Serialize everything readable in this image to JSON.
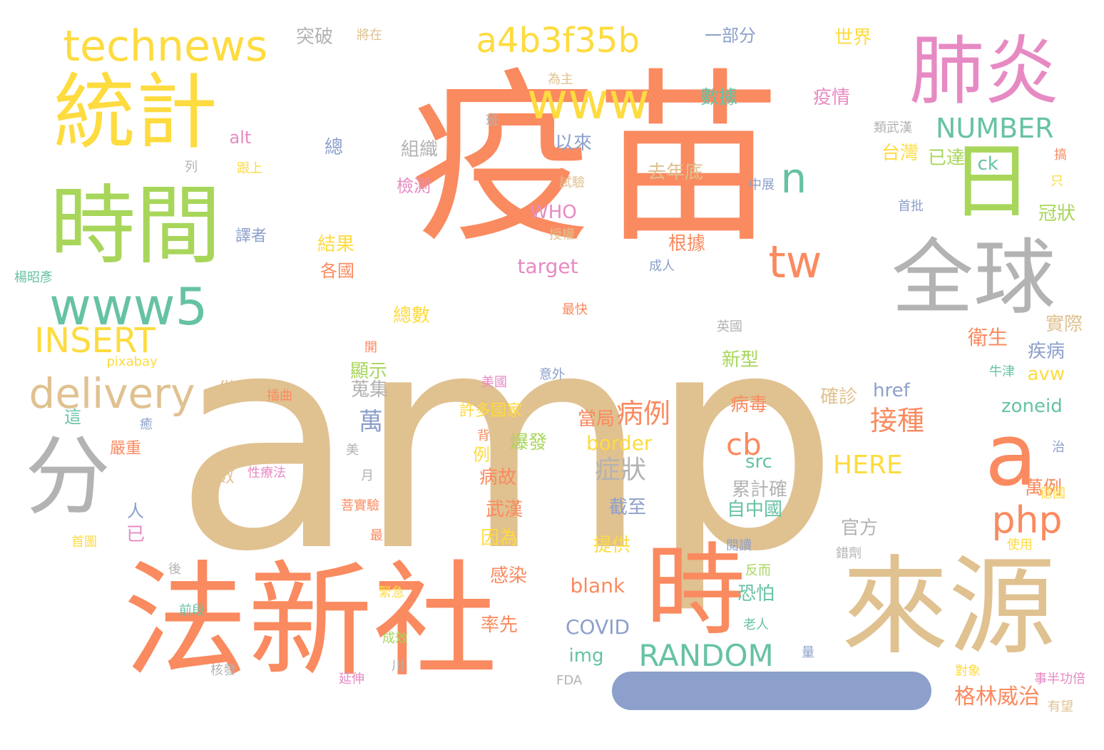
{
  "palette": {
    "orange": "#fa8a5f",
    "tan": "#e0c190",
    "gold": "#fedb3f",
    "green": "#a8d65b",
    "teal": "#66c2a5",
    "pink": "#e78ac3",
    "blue": "#8da0cb",
    "grey": "#b3b3b3"
  },
  "words": [
    {
      "text": "amp",
      "color": "tan",
      "size": 420,
      "vertical": false
    },
    {
      "text": "疫苗",
      "color": "orange",
      "size": 260,
      "vertical": false
    },
    {
      "text": "法新社",
      "color": "orange",
      "size": 175,
      "vertical": false
    },
    {
      "text": "來源",
      "color": "tan",
      "size": 150,
      "vertical": false
    },
    {
      "text": "時間",
      "color": "green",
      "size": 120,
      "vertical": false
    },
    {
      "text": "統計",
      "color": "gold",
      "size": 115,
      "vertical": false
    },
    {
      "text": "全球",
      "color": "grey",
      "size": 115,
      "vertical": false
    },
    {
      "text": "肺炎",
      "color": "pink",
      "size": 105,
      "vertical": false
    },
    {
      "text": "時",
      "color": "orange",
      "size": 140,
      "vertical": false
    },
    {
      "text": "分",
      "color": "grey",
      "size": 120,
      "vertical": false
    },
    {
      "text": "日",
      "color": "green",
      "size": 115,
      "vertical": false
    },
    {
      "text": "a",
      "color": "orange",
      "size": 120,
      "vertical": false
    },
    {
      "text": "technews",
      "color": "gold",
      "size": 60,
      "vertical": false
    },
    {
      "text": "www5",
      "color": "teal",
      "size": 72,
      "vertical": false
    },
    {
      "text": "www",
      "color": "gold",
      "size": 70,
      "vertical": false
    },
    {
      "text": "a4b3f35b",
      "color": "gold",
      "size": 48,
      "vertical": false
    },
    {
      "text": "delivery",
      "color": "tan",
      "size": 58,
      "vertical": false
    },
    {
      "text": "INSERT",
      "color": "gold",
      "size": 48,
      "vertical": false
    },
    {
      "text": "tw",
      "color": "orange",
      "size": 62,
      "vertical": false
    },
    {
      "text": "n",
      "color": "teal",
      "size": 58,
      "vertical": false
    },
    {
      "text": "php",
      "color": "orange",
      "size": 52,
      "vertical": false
    },
    {
      "text": "RANDOM",
      "color": "teal",
      "size": 42,
      "vertical": false
    },
    {
      "text": "NUMBER",
      "color": "teal",
      "size": 38,
      "vertical": false
    },
    {
      "text": "cb",
      "color": "orange",
      "size": 42,
      "vertical": false
    },
    {
      "text": "病例",
      "color": "orange",
      "size": 38,
      "vertical": false
    },
    {
      "text": "接種",
      "color": "orange",
      "size": 38,
      "vertical": false
    },
    {
      "text": "症狀",
      "color": "grey",
      "size": 36,
      "vertical": false
    },
    {
      "text": "HERE",
      "color": "gold",
      "size": 36,
      "vertical": false
    },
    {
      "text": "格林威治",
      "color": "orange",
      "size": 30,
      "vertical": false
    },
    {
      "text": "萬",
      "color": "blue",
      "size": 34,
      "vertical": false
    },
    {
      "text": "COVID",
      "color": "blue",
      "size": 28,
      "vertical": false
    },
    {
      "text": "blank",
      "color": "orange",
      "size": 28,
      "vertical": false
    },
    {
      "text": "border",
      "color": "gold",
      "size": 28,
      "vertical": false
    },
    {
      "text": "target",
      "color": "pink",
      "size": 28,
      "vertical": false
    },
    {
      "text": "WHO",
      "color": "pink",
      "size": 26,
      "vertical": false
    },
    {
      "text": "zoneid",
      "color": "teal",
      "size": 26,
      "vertical": false
    },
    {
      "text": "href",
      "color": "blue",
      "size": 26,
      "vertical": false
    },
    {
      "text": "avw",
      "color": "gold",
      "size": 26,
      "vertical": false
    },
    {
      "text": "ck",
      "color": "teal",
      "size": 26,
      "vertical": false
    },
    {
      "text": "src",
      "color": "teal",
      "size": 26,
      "vertical": false
    },
    {
      "text": "img",
      "color": "teal",
      "size": 26,
      "vertical": false
    },
    {
      "text": "alt",
      "color": "pink",
      "size": 24,
      "vertical": false
    },
    {
      "text": "pixabay",
      "color": "gold",
      "size": 18,
      "vertical": false
    },
    {
      "text": "FDA",
      "color": "grey",
      "size": 18,
      "vertical": false
    },
    {
      "text": "突破",
      "color": "grey",
      "size": 26,
      "vertical": false
    },
    {
      "text": "將在",
      "color": "tan",
      "size": 18,
      "vertical": false
    },
    {
      "text": "一部分",
      "color": "blue",
      "size": 24,
      "vertical": false
    },
    {
      "text": "世界",
      "color": "gold",
      "size": 26,
      "vertical": false
    },
    {
      "text": "為主",
      "color": "tan",
      "size": 18,
      "vertical": false
    },
    {
      "text": "數據",
      "color": "teal",
      "size": 26,
      "vertical": false
    },
    {
      "text": "疫情",
      "color": "pink",
      "size": 26,
      "vertical": false
    },
    {
      "text": "班",
      "color": "grey",
      "size": 18,
      "vertical": false
    },
    {
      "text": "類武漢",
      "color": "grey",
      "size": 18,
      "vertical": false
    },
    {
      "text": "總",
      "color": "blue",
      "size": 26,
      "vertical": false
    },
    {
      "text": "組織",
      "color": "grey",
      "size": 26,
      "vertical": false
    },
    {
      "text": "以來",
      "color": "blue",
      "size": 26,
      "vertical": false
    },
    {
      "text": "台灣",
      "color": "gold",
      "size": 26,
      "vertical": false
    },
    {
      "text": "去年底",
      "color": "tan",
      "size": 26,
      "vertical": false
    },
    {
      "text": "列",
      "color": "grey",
      "size": 18,
      "vertical": false
    },
    {
      "text": "跟上",
      "color": "gold",
      "size": 18,
      "vertical": false
    },
    {
      "text": "檢測",
      "color": "pink",
      "size": 24,
      "vertical": false
    },
    {
      "text": "試驗",
      "color": "tan",
      "size": 18,
      "vertical": false
    },
    {
      "text": "中展",
      "color": "blue",
      "size": 18,
      "vertical": false
    },
    {
      "text": "已達",
      "color": "green",
      "size": 26,
      "vertical": false
    },
    {
      "text": "搞",
      "color": "orange",
      "size": 18,
      "vertical": false
    },
    {
      "text": "只",
      "color": "gold",
      "size": 18,
      "vertical": false
    },
    {
      "text": "首批",
      "color": "blue",
      "size": 18,
      "vertical": false
    },
    {
      "text": "冠狀",
      "color": "green",
      "size": 26,
      "vertical": false
    },
    {
      "text": "譯者",
      "color": "blue",
      "size": 22,
      "vertical": false
    },
    {
      "text": "授權",
      "color": "tan",
      "size": 18,
      "vertical": false
    },
    {
      "text": "根據",
      "color": "orange",
      "size": 26,
      "vertical": false
    },
    {
      "text": "結果",
      "color": "gold",
      "size": 26,
      "vertical": false
    },
    {
      "text": "成人",
      "color": "blue",
      "size": 18,
      "vertical": false
    },
    {
      "text": "各國",
      "color": "orange",
      "size": 24,
      "vertical": false
    },
    {
      "text": "楊昭彥",
      "color": "teal",
      "size": 18,
      "vertical": false
    },
    {
      "text": "最快",
      "color": "orange",
      "size": 18,
      "vertical": false
    },
    {
      "text": "總數",
      "color": "gold",
      "size": 26,
      "vertical": false
    },
    {
      "text": "英國",
      "color": "grey",
      "size": 18,
      "vertical": false
    },
    {
      "text": "衛生",
      "color": "orange",
      "size": 28,
      "vertical": false
    },
    {
      "text": "實際",
      "color": "tan",
      "size": 26,
      "vertical": false
    },
    {
      "text": "開",
      "color": "orange",
      "size": 18,
      "vertical": false
    },
    {
      "text": "疾病",
      "color": "blue",
      "size": 26,
      "vertical": false
    },
    {
      "text": "新型",
      "color": "green",
      "size": 26,
      "vertical": false
    },
    {
      "text": "顯示",
      "color": "green",
      "size": 26,
      "vertical": false
    },
    {
      "text": "牛津",
      "color": "teal",
      "size": 18,
      "vertical": false
    },
    {
      "text": "美國",
      "color": "pink",
      "size": 18,
      "vertical": false
    },
    {
      "text": "做出",
      "color": "tan",
      "size": 26,
      "vertical": false
    },
    {
      "text": "蒐集",
      "color": "grey",
      "size": 26,
      "vertical": false
    },
    {
      "text": "插曲",
      "color": "orange",
      "size": 18,
      "vertical": false
    },
    {
      "text": "這",
      "color": "teal",
      "size": 24,
      "vertical": false
    },
    {
      "text": "許多國家",
      "color": "gold",
      "size": 22,
      "vertical": false
    },
    {
      "text": "病毒",
      "color": "orange",
      "size": 26,
      "vertical": false
    },
    {
      "text": "確診",
      "color": "tan",
      "size": 26,
      "vertical": false
    },
    {
      "text": "癒",
      "color": "blue",
      "size": 18,
      "vertical": false
    },
    {
      "text": "當局",
      "color": "orange",
      "size": 26,
      "vertical": false
    },
    {
      "text": "背",
      "color": "orange",
      "size": 18,
      "vertical": false
    },
    {
      "text": "爆發",
      "color": "green",
      "size": 26,
      "vertical": false
    },
    {
      "text": "治",
      "color": "blue",
      "size": 18,
      "vertical": false
    },
    {
      "text": "嚴重",
      "color": "orange",
      "size": 22,
      "vertical": false
    },
    {
      "text": "美",
      "color": "grey",
      "size": 18,
      "vertical": false
    },
    {
      "text": "例",
      "color": "gold",
      "size": 24,
      "vertical": false
    },
    {
      "text": "性療法",
      "color": "pink",
      "size": 18,
      "vertical": false
    },
    {
      "text": "診數",
      "color": "tan",
      "size": 26,
      "vertical": false
    },
    {
      "text": "月",
      "color": "grey",
      "size": 18,
      "vertical": false
    },
    {
      "text": "病故",
      "color": "orange",
      "size": 26,
      "vertical": false
    },
    {
      "text": "累計確",
      "color": "grey",
      "size": 26,
      "vertical": false
    },
    {
      "text": "萬例",
      "color": "orange",
      "size": 26,
      "vertical": false
    },
    {
      "text": "德國",
      "color": "gold",
      "size": 18,
      "vertical": false
    },
    {
      "text": "菩實驗",
      "color": "orange",
      "size": 18,
      "vertical": false
    },
    {
      "text": "武漢",
      "color": "orange",
      "size": 26,
      "vertical": false
    },
    {
      "text": "截至",
      "color": "blue",
      "size": 26,
      "vertical": false
    },
    {
      "text": "自中國",
      "color": "teal",
      "size": 26,
      "vertical": false
    },
    {
      "text": "人",
      "color": "blue",
      "size": 24,
      "vertical": false
    },
    {
      "text": "首圖",
      "color": "gold",
      "size": 18,
      "vertical": false
    },
    {
      "text": "已",
      "color": "pink",
      "size": 26,
      "vertical": false
    },
    {
      "text": "最",
      "color": "orange",
      "size": 18,
      "vertical": false
    },
    {
      "text": "因為",
      "color": "gold",
      "size": 26,
      "vertical": false
    },
    {
      "text": "提供",
      "color": "gold",
      "size": 26,
      "vertical": false
    },
    {
      "text": "官方",
      "color": "grey",
      "size": 26,
      "vertical": false
    },
    {
      "text": "閱讀",
      "color": "blue",
      "size": 18,
      "vertical": false
    },
    {
      "text": "使用",
      "color": "gold",
      "size": 18,
      "vertical": false
    },
    {
      "text": "錯劑",
      "color": "grey",
      "size": 18,
      "vertical": false
    },
    {
      "text": "後",
      "color": "grey",
      "size": 18,
      "vertical": false
    },
    {
      "text": "感染",
      "color": "orange",
      "size": 26,
      "vertical": false
    },
    {
      "text": "反而",
      "color": "green",
      "size": 18,
      "vertical": false
    },
    {
      "text": "緊急",
      "color": "gold",
      "size": 18,
      "vertical": false
    },
    {
      "text": "恐怕",
      "color": "teal",
      "size": 26,
      "vertical": false
    },
    {
      "text": "前段",
      "color": "teal",
      "size": 18,
      "vertical": false
    },
    {
      "text": "率先",
      "color": "orange",
      "size": 26,
      "vertical": false
    },
    {
      "text": "老人",
      "color": "teal",
      "size": 18,
      "vertical": false
    },
    {
      "text": "成效",
      "color": "green",
      "size": 18,
      "vertical": false
    },
    {
      "text": "量",
      "color": "blue",
      "size": 18,
      "vertical": false
    },
    {
      "text": "核發",
      "color": "grey",
      "size": 18,
      "vertical": false
    },
    {
      "text": "延伸",
      "color": "pink",
      "size": 18,
      "vertical": false
    },
    {
      "text": "川",
      "color": "grey",
      "size": 18,
      "vertical": false
    },
    {
      "text": "對象",
      "color": "gold",
      "size": 18,
      "vertical": false
    },
    {
      "text": "事半功倍",
      "color": "pink",
      "size": 18,
      "vertical": false
    },
    {
      "text": "有望",
      "color": "tan",
      "size": 18,
      "vertical": false
    },
    {
      "text": "意外",
      "color": "blue",
      "size": 18,
      "vertical": false
    }
  ],
  "bar": {
    "color": "blue"
  }
}
